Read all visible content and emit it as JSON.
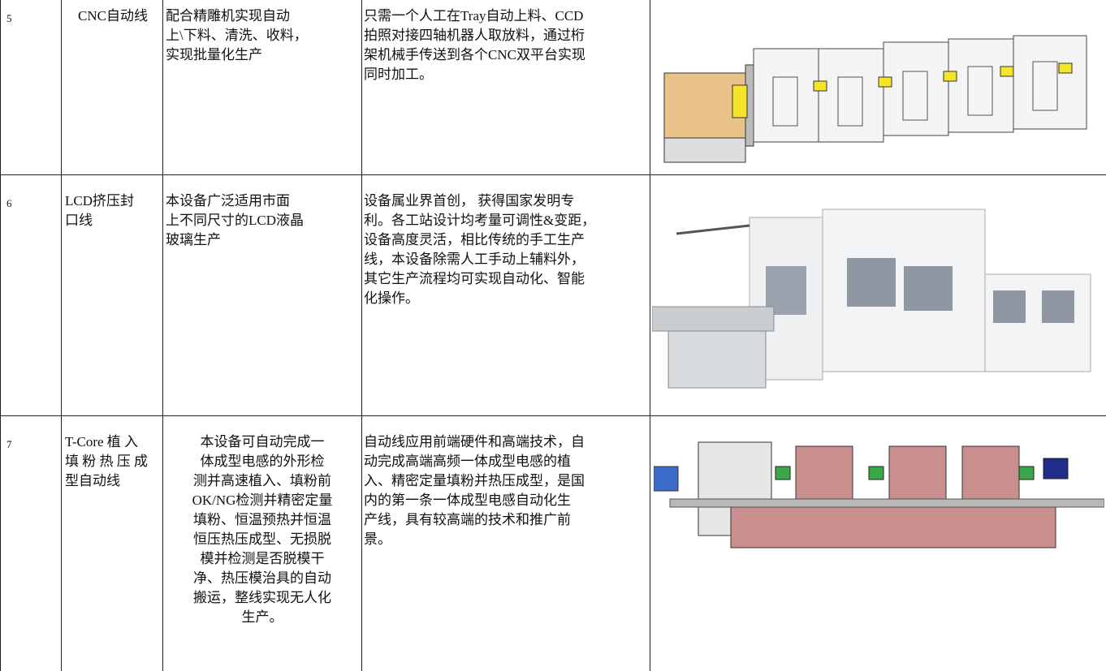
{
  "table": {
    "rows": [
      {
        "no": "5",
        "name": [
          "CNC自动线"
        ],
        "description": [
          "配合精雕机实现自动",
          "上\\下料、清洗、收料，",
          "实现批量化生产"
        ],
        "features": [
          "只需一个人工在Tray自动上料、CCD",
          "拍照对接四轴机器人取放料，通过桁",
          "架机械手传送到各个CNC双平台实现",
          "同时加工。"
        ]
      },
      {
        "no": "6",
        "name": [
          "LCD挤压封",
          "口线"
        ],
        "description": [
          "本设备广泛适用市面",
          "上不同尺寸的LCD液晶",
          "玻璃生产"
        ],
        "features": [
          "设备属业界首创， 获得国家发明专",
          "利。各工站设计均考量可调性&变距，",
          "设备高度灵活，相比传统的手工生产",
          "线，本设备除需人工手动上辅料外，",
          "其它生产流程均可实现自动化、智能",
          "化操作。"
        ]
      },
      {
        "no": "7",
        "name": [
          "T-Core 植 入",
          "填 粉 热 压 成",
          "型自动线"
        ],
        "description": [
          "本设备可自动完成一",
          "体成型电感的外形检",
          "测并高速植入、填粉前",
          "OK/NG检测并精密定量",
          "填粉、恒温预热并恒温",
          "恒压热压成型、无损脱",
          "模并检测是否脱模干",
          "净、热压模治具的自动",
          "搬运，整线实现无人化",
          "生产。"
        ],
        "features": [
          "自动线应用前端硬件和高端技术，自",
          "动完成高端高频一体成型电感的植",
          "入、精密定量填粉并热压成型，是国",
          "内的第一条一体成型电感自动化生",
          "产线，具有较高端的技术和推广前",
          "景。"
        ]
      }
    ]
  }
}
